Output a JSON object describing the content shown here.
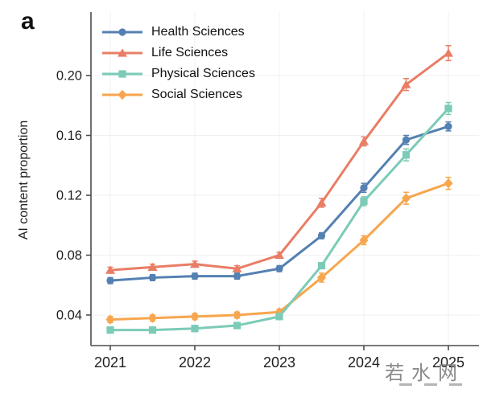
{
  "figure": {
    "panel_label": "a",
    "watermark": "若水网"
  },
  "chart_data": {
    "type": "line",
    "title": "",
    "xlabel": "",
    "ylabel": "AI content proportion",
    "x": [
      2021,
      2021.5,
      2022,
      2022.5,
      2023,
      2023.5,
      2024,
      2024.5,
      2025
    ],
    "xticks": [
      2021,
      2022,
      2023,
      2024,
      2025
    ],
    "yticks": [
      0.04,
      0.08,
      0.12,
      0.16,
      0.2
    ],
    "ytick_labels": [
      "0.04",
      "0.08",
      "0.12",
      "0.16",
      "0.20"
    ],
    "ylim": [
      0.0196,
      0.2424
    ],
    "xlim": [
      2020.77,
      2025.36
    ],
    "grid": true,
    "legend_position": "top-left",
    "series": [
      {
        "name": "Health Sciences",
        "color": "#5480B2",
        "marker": "circle",
        "values": [
          0.063,
          0.065,
          0.066,
          0.066,
          0.071,
          0.093,
          0.125,
          0.157,
          0.166
        ],
        "errors": [
          0.002,
          0.002,
          0.002,
          0.002,
          0.002,
          0.002,
          0.003,
          0.003,
          0.003
        ]
      },
      {
        "name": "Life Sciences",
        "color": "#E97D65",
        "marker": "triangle",
        "values": [
          0.07,
          0.072,
          0.074,
          0.071,
          0.08,
          0.115,
          0.156,
          0.194,
          0.215
        ],
        "errors": [
          0.002,
          0.002,
          0.002,
          0.002,
          0.002,
          0.003,
          0.003,
          0.004,
          0.005
        ]
      },
      {
        "name": "Physical Sciences",
        "color": "#7BCBB7",
        "marker": "square",
        "values": [
          0.03,
          0.03,
          0.031,
          0.033,
          0.039,
          0.073,
          0.116,
          0.147,
          0.178
        ],
        "errors": [
          0.002,
          0.002,
          0.002,
          0.002,
          0.002,
          0.002,
          0.003,
          0.004,
          0.004
        ]
      },
      {
        "name": "Social Sciences",
        "color": "#F7A64E",
        "marker": "diamond",
        "values": [
          0.037,
          0.038,
          0.039,
          0.04,
          0.042,
          0.065,
          0.09,
          0.118,
          0.128
        ],
        "errors": [
          0.002,
          0.002,
          0.002,
          0.002,
          0.002,
          0.003,
          0.003,
          0.004,
          0.004
        ]
      }
    ],
    "draw_order": [
      3,
      0,
      2,
      1
    ],
    "colors": {
      "spine": "#4d4d4d",
      "tick_text": "#1f1f1f",
      "grid": "#f0f0f0"
    }
  }
}
